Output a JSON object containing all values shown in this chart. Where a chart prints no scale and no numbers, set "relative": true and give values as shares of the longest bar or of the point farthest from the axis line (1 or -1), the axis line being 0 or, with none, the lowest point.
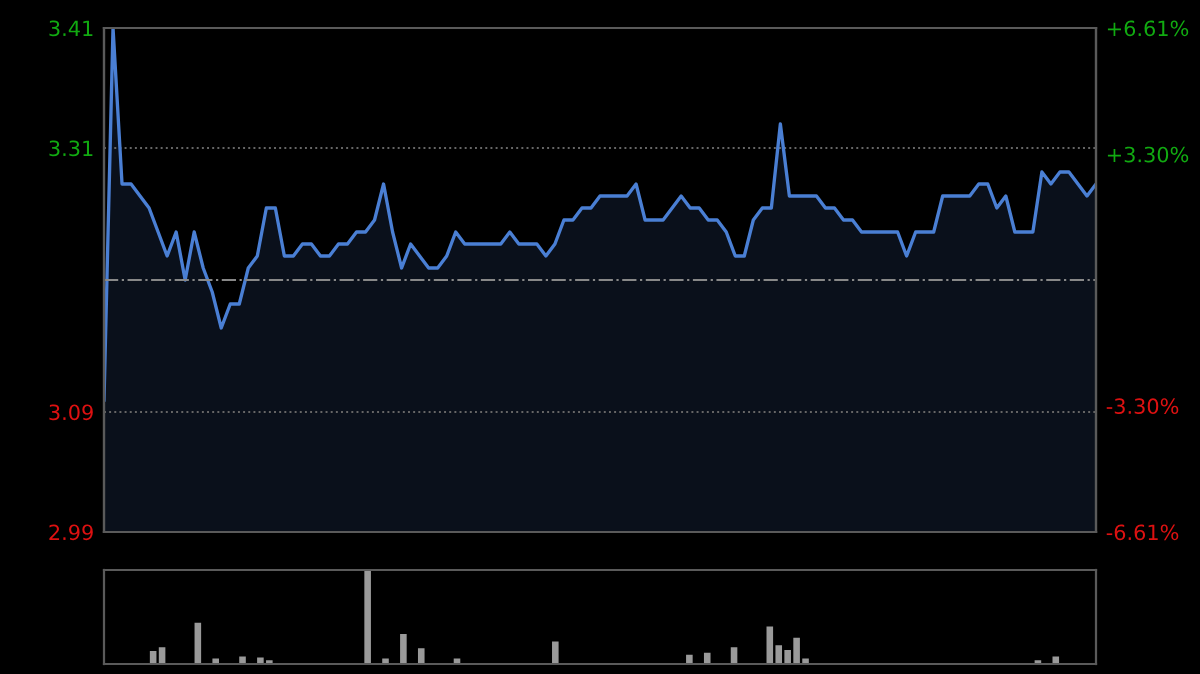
{
  "chart_data": [
    {
      "type": "area",
      "categories": [
        null,
        null,
        null,
        null,
        null,
        null,
        null,
        null,
        null,
        null,
        null,
        null,
        null,
        null,
        null,
        null,
        null,
        null,
        null,
        null,
        null,
        null,
        null,
        null,
        null,
        null,
        null,
        null,
        null,
        null,
        null,
        null,
        null,
        null,
        null,
        null,
        null,
        null,
        null,
        null,
        null,
        null,
        null,
        null,
        null,
        null,
        null,
        null,
        null,
        null,
        null,
        null,
        null,
        null,
        null,
        null,
        null,
        null,
        null,
        null,
        null,
        null,
        null,
        null,
        null,
        null,
        null,
        null,
        null,
        null,
        null,
        null,
        null,
        null,
        null,
        null,
        null,
        null,
        null,
        null,
        null,
        null,
        null,
        null,
        null,
        null,
        null,
        null,
        null,
        null,
        null,
        null,
        null,
        null,
        null,
        null,
        null,
        null,
        null,
        null,
        null,
        null,
        null,
        null,
        null,
        null,
        null,
        null,
        null,
        null,
        null
      ],
      "series": [
        {
          "color": "#4a7fd4",
          "values": [
            3.1,
            3.41,
            3.28,
            3.28,
            3.27,
            3.26,
            3.24,
            3.22,
            3.24,
            3.2,
            3.24,
            3.21,
            3.19,
            3.16,
            3.18,
            3.18,
            3.21,
            3.22,
            3.26,
            3.26,
            3.22,
            3.22,
            3.23,
            3.23,
            3.22,
            3.22,
            3.23,
            3.23,
            3.24,
            3.24,
            3.25,
            3.28,
            3.24,
            3.21,
            3.23,
            3.22,
            3.21,
            3.21,
            3.22,
            3.24,
            3.23,
            3.23,
            3.23,
            3.23,
            3.23,
            3.24,
            3.23,
            3.23,
            3.23,
            3.22,
            3.23,
            3.25,
            3.25,
            3.26,
            3.26,
            3.27,
            3.27,
            3.27,
            3.27,
            3.28,
            3.25,
            3.25,
            3.25,
            3.26,
            3.27,
            3.26,
            3.26,
            3.25,
            3.25,
            3.24,
            3.22,
            3.22,
            3.25,
            3.26,
            3.26,
            3.33,
            3.27,
            3.27,
            3.27,
            3.27,
            3.26,
            3.26,
            3.25,
            3.25,
            3.24,
            3.24,
            3.24,
            3.24,
            3.24,
            3.22,
            3.24,
            3.24,
            3.24,
            3.27,
            3.27,
            3.27,
            3.27,
            3.28,
            3.28,
            3.26,
            3.27,
            3.24,
            3.24,
            3.24,
            3.29,
            3.28,
            3.29,
            3.29,
            3.28,
            3.27,
            3.28
          ]
        }
      ],
      "ylim": [
        2.99,
        3.41
      ],
      "yticks": [
        2.99,
        3.09,
        3.31,
        3.41
      ],
      "y2lim": [
        -6.61,
        6.61
      ],
      "y2ticks": [
        {
          "value": -6.61,
          "label": "-6.61%"
        },
        {
          "value": -3.3,
          "label": "-3.30%"
        },
        {
          "value": 3.3,
          "label": "+3.30%"
        },
        {
          "value": 6.61,
          "label": "+6.61%"
        }
      ],
      "ref_lines": [
        {
          "axis": "y",
          "value": 3.2,
          "color": "#888888",
          "line_style": "dashdot"
        }
      ],
      "grid": "y",
      "line_style": "solid"
    },
    {
      "type": "bar",
      "relative": true,
      "categories": [
        null,
        null,
        null,
        null,
        null,
        null,
        null,
        null,
        null,
        null,
        null,
        null,
        null,
        null,
        null,
        null,
        null,
        null,
        null,
        null,
        null,
        null,
        null,
        null,
        null,
        null,
        null,
        null,
        null,
        null,
        null,
        null,
        null,
        null,
        null,
        null,
        null,
        null,
        null,
        null,
        null,
        null,
        null,
        null,
        null,
        null,
        null,
        null,
        null,
        null,
        null,
        null,
        null,
        null,
        null,
        null,
        null,
        null,
        null,
        null,
        null,
        null,
        null,
        null,
        null,
        null,
        null,
        null,
        null,
        null,
        null,
        null,
        null,
        null,
        null,
        null,
        null,
        null,
        null,
        null,
        null,
        null,
        null,
        null,
        null,
        null,
        null,
        null,
        null,
        null,
        null,
        null,
        null,
        null,
        null,
        null,
        null,
        null,
        null,
        null,
        null,
        null,
        null,
        null,
        null,
        null,
        null,
        null,
        null,
        null,
        null
      ],
      "series": [
        {
          "color": "#9a9a9a",
          "values": [
            0,
            0,
            0,
            0,
            0,
            0.13,
            0.17,
            0,
            0,
            0,
            0.43,
            0,
            0.05,
            0,
            0,
            0.07,
            0,
            0.06,
            0.03,
            0,
            0,
            0,
            0,
            0,
            0,
            0,
            0,
            0,
            0,
            1,
            0,
            0.05,
            0,
            0.31,
            0,
            0.16,
            0,
            0,
            0,
            0.05,
            0,
            0,
            0,
            0,
            0,
            0,
            0,
            0,
            0,
            0,
            0.23,
            0,
            0,
            0,
            0,
            0,
            0,
            0,
            0,
            0,
            0,
            0,
            0,
            0,
            0,
            0.09,
            0,
            0.11,
            0,
            0,
            0.17,
            0,
            0,
            0,
            0.39,
            0.19,
            0.14,
            0.27,
            0.05,
            0,
            0,
            0,
            0,
            0,
            0,
            0,
            0,
            0,
            0,
            0,
            0,
            0,
            0,
            0,
            0,
            0,
            0,
            0,
            0,
            0,
            0,
            0,
            0,
            0,
            0.03,
            0,
            0.07,
            0,
            0,
            0,
            0
          ]
        }
      ]
    }
  ]
}
